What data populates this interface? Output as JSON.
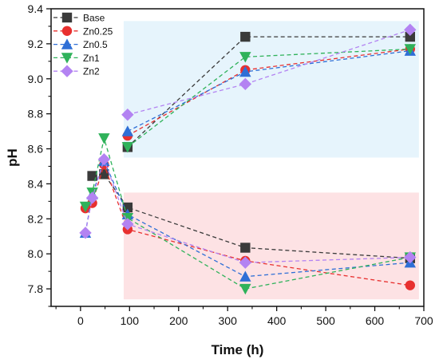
{
  "chart_data": {
    "type": "line",
    "title": "",
    "xlabel": "Time (h)",
    "ylabel": "pH",
    "xlim": [
      -60,
      700
    ],
    "ylim": [
      7.7,
      9.4
    ],
    "xticks": [
      0,
      100,
      200,
      300,
      400,
      500,
      600,
      700
    ],
    "yticks": [
      7.8,
      8.0,
      8.2,
      8.4,
      8.6,
      8.8,
      9.0,
      9.2,
      9.4
    ],
    "grid": false,
    "legend": "top-left",
    "line_style": "dashed with markers",
    "highlight_bands": [
      {
        "x": [
          88,
          690
        ],
        "y": [
          8.55,
          9.33
        ],
        "color": "#e6f4fc"
      },
      {
        "x": [
          88,
          690
        ],
        "y": [
          7.74,
          8.35
        ],
        "color": "#fde2e4"
      }
    ],
    "series": [
      {
        "name": "Base",
        "color": "#3a3a3a",
        "marker": "square",
        "x": [
          24,
          48,
          96,
          336,
          672
        ],
        "y": [
          8.445,
          8.455,
          8.265,
          8.035,
          7.975
        ]
      },
      {
        "name": "Zn0.25",
        "color": "#e8302f",
        "marker": "circle",
        "x": [
          10,
          24,
          48,
          96,
          336,
          672
        ],
        "y": [
          8.26,
          8.29,
          8.51,
          8.14,
          7.96,
          7.82
        ]
      },
      {
        "name": "Zn0.5",
        "color": "#2f6fd6",
        "marker": "triangle-up",
        "x": [
          10,
          24,
          48,
          96,
          336,
          672
        ],
        "y": [
          8.12,
          8.34,
          8.53,
          8.225,
          7.87,
          7.95
        ]
      },
      {
        "name": "Zn1",
        "color": "#2fb25a",
        "marker": "triangle-down",
        "x": [
          10,
          24,
          48,
          96,
          336,
          672
        ],
        "y": [
          8.27,
          8.35,
          8.66,
          8.205,
          7.8,
          7.98
        ]
      },
      {
        "name": "Zn2",
        "color": "#b383f2",
        "marker": "diamond",
        "x": [
          10,
          24,
          48,
          96,
          336,
          672
        ],
        "y": [
          8.12,
          8.32,
          8.54,
          8.17,
          7.95,
          7.98
        ]
      }
    ],
    "series_upper_branch": [
      {
        "name": "Base",
        "x": [
          96,
          336,
          672
        ],
        "y": [
          8.61,
          9.24,
          9.24
        ]
      },
      {
        "name": "Zn0.25",
        "x": [
          96,
          336,
          672
        ],
        "y": [
          8.675,
          9.05,
          9.17
        ]
      },
      {
        "name": "Zn0.5",
        "x": [
          96,
          336,
          672
        ],
        "y": [
          8.7,
          9.04,
          9.16
        ]
      },
      {
        "name": "Zn1",
        "x": [
          96,
          336,
          672
        ],
        "y": [
          8.61,
          9.125,
          9.17
        ]
      },
      {
        "name": "Zn2",
        "x": [
          96,
          336,
          672
        ],
        "y": [
          8.795,
          8.97,
          9.28
        ]
      }
    ]
  }
}
